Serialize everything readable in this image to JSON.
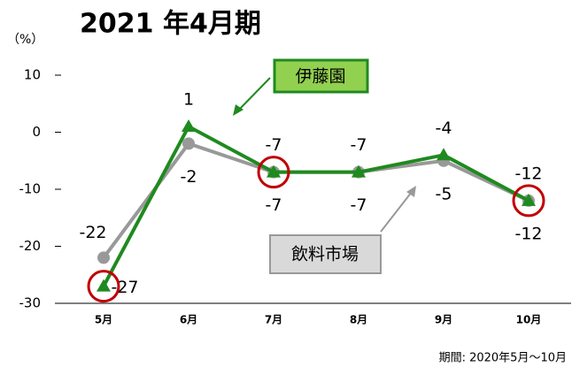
{
  "chart_data": {
    "type": "line",
    "title": "2021 年4月期",
    "y_axis_label": "（%）",
    "footnote": "期間: 2020年5月～10月",
    "categories": [
      "5月",
      "6月",
      "7月",
      "8月",
      "9月",
      "10月"
    ],
    "series": [
      {
        "name": "飲料市場",
        "color": "#999999",
        "marker": "circle",
        "values": [
          -22,
          -2,
          -7,
          -7,
          -5,
          -12
        ]
      },
      {
        "name": "伊藤園",
        "color": "#1f8a1f",
        "marker": "triangle",
        "values": [
          -27,
          1,
          -7,
          -7,
          -4,
          -12
        ]
      }
    ],
    "highlights": [
      0,
      2,
      5
    ],
    "highlight_color": "#c00000",
    "ylim": [
      -30,
      10
    ],
    "yticks": [
      10,
      0,
      -10,
      -20,
      -30
    ]
  }
}
